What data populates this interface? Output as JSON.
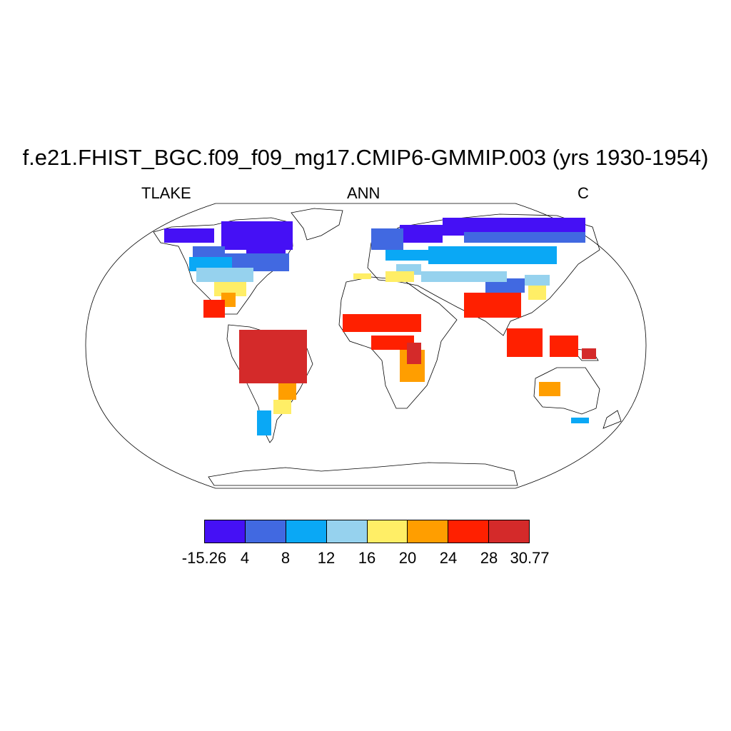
{
  "title": "f.e21.FHIST_BGC.f09_f09_mg17.CMIP6-GMMIP.003 (yrs 1930-1954)",
  "subtitle_left": "TLAKE",
  "subtitle_center": "ANN",
  "subtitle_right": "C",
  "map": {
    "projection": "Robinson",
    "variable": "TLAKE",
    "season": "ANN",
    "units": "C",
    "coastlines": true,
    "region_classes": [
      "high-latitude-north",
      "north-mid-latitude",
      "subtropics",
      "tropics",
      "southern-subtropics",
      "southern-mid-latitude"
    ]
  },
  "colorbar": {
    "colors": [
      "#4510f5",
      "#4169e1",
      "#0aa8f5",
      "#96d2ee",
      "#ffee66",
      "#ff9e00",
      "#ff2000",
      "#d42a2a"
    ],
    "labels": [
      "-15.26",
      "4",
      "8",
      "12",
      "16",
      "20",
      "24",
      "28",
      "30.77"
    ]
  }
}
